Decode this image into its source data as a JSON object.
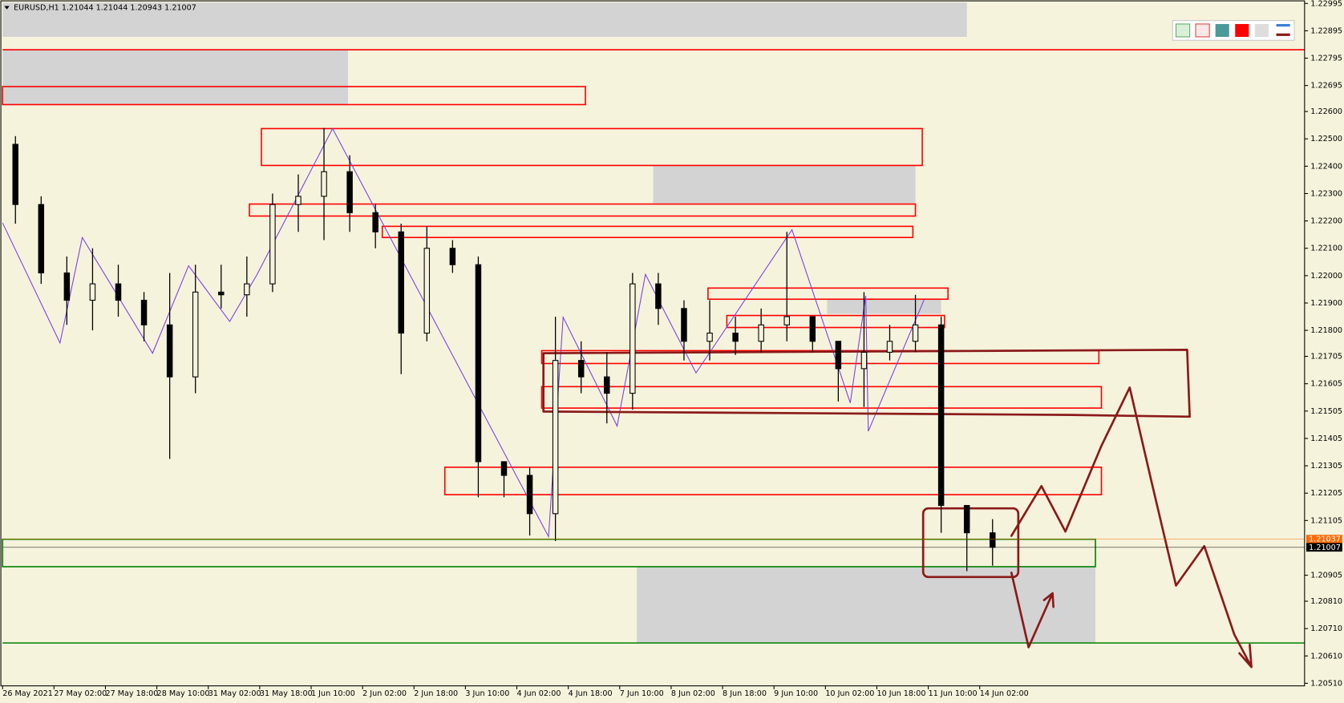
{
  "chart_data": {
    "type": "candlestick",
    "title": "EURUSD,H1  1.21044 1.21044 1.20943 1.21007",
    "ylim": [
      1.2051,
      1.22995
    ],
    "yticks": [
      1.22995,
      1.22895,
      1.22795,
      1.22695,
      {
        "value": 1.226,
        "label": "1.22600"
      },
      {
        "value": 1.225,
        "label": "1.22500"
      },
      {
        "value": 1.224,
        "label": "1.22400"
      },
      {
        "value": 1.223,
        "label": "1.22300"
      },
      {
        "value": 1.222,
        "label": "1.22200"
      },
      {
        "value": 1.221,
        "label": "1.22100"
      },
      {
        "value": 1.22,
        "label": "1.22000"
      },
      {
        "value": 1.219,
        "label": "1.21900"
      },
      {
        "value": 1.218,
        "label": "1.21800"
      },
      1.21705,
      1.21605,
      1.21505,
      1.21405,
      1.21305,
      1.21205,
      1.21105,
      1.20905,
      {
        "value": 1.2081,
        "label": "1.20810"
      },
      {
        "value": 1.2071,
        "label": "1.20710"
      },
      {
        "value": 1.2061,
        "label": "1.20610"
      },
      {
        "value": 1.2051,
        "label": "1.20510"
      }
    ],
    "xticks": [
      "26 May 2021",
      "27 May 02:00",
      "27 May 18:00",
      "28 May 10:00",
      "31 May 02:00",
      "31 May 18:00",
      "1 Jun 10:00",
      "2 Jun 02:00",
      "2 Jun 18:00",
      "3 Jun 10:00",
      "4 Jun 02:00",
      "4 Jun 18:00",
      "7 Jun 10:00",
      "8 Jun 02:00",
      "8 Jun 18:00",
      "9 Jun 10:00",
      "10 Jun 02:00",
      "10 Jun 18:00",
      "11 Jun 10:00",
      "14 Jun 02:00"
    ],
    "color": "#000000",
    "open": [
      1.2248,
      1.2226,
      1.2201,
      1.2191,
      1.2197,
      1.2191,
      1.2182,
      1.2163,
      1.2194,
      1.2193,
      1.2197,
      1.2226,
      1.2229,
      1.2238,
      1.2223,
      1.2216,
      1.2179,
      1.221,
      1.2204,
      1.2132,
      1.2127,
      1.2113,
      1.2169,
      1.2163,
      1.2157,
      1.2197,
      1.2188,
      1.2176,
      1.2179,
      1.2176,
      1.2182,
      1.2185,
      1.2176,
      1.2166,
      1.2172,
      1.2176,
      1.2182,
      1.2116,
      1.2106
    ],
    "high": [
      1.2251,
      1.2229,
      1.2207,
      1.221,
      1.2204,
      1.2194,
      1.2201,
      1.2204,
      1.2204,
      1.2207,
      1.223,
      1.2237,
      1.2254,
      1.2244,
      1.2226,
      1.2219,
      1.2218,
      1.2213,
      1.2207,
      1.2132,
      1.213,
      1.2185,
      1.2176,
      1.2172,
      1.2201,
      1.2201,
      1.2191,
      1.2191,
      1.2185,
      1.2188,
      1.2216,
      1.2185,
      1.2176,
      1.2194,
      1.2182,
      1.2193,
      1.2185,
      1.2116,
      1.2111
    ],
    "low": [
      1.2219,
      1.2197,
      1.2182,
      1.218,
      1.2185,
      1.2176,
      1.2133,
      1.2157,
      1.2188,
      1.2185,
      1.2194,
      1.2216,
      1.2213,
      1.2216,
      1.221,
      1.2164,
      1.2176,
      1.2201,
      1.2119,
      1.2119,
      1.2105,
      1.2103,
      1.2157,
      1.2146,
      1.2151,
      1.2182,
      1.2169,
      1.2169,
      1.2171,
      1.2172,
      1.2176,
      1.2172,
      1.2154,
      1.2152,
      1.2169,
      1.2172,
      1.2106,
      1.2092,
      1.2094
    ],
    "close": [
      1.2226,
      1.2201,
      1.2191,
      1.2197,
      1.2191,
      1.2182,
      1.2163,
      1.2194,
      1.2193,
      1.2197,
      1.2226,
      1.2229,
      1.2238,
      1.2223,
      1.2216,
      1.2179,
      1.221,
      1.2204,
      1.2132,
      1.2127,
      1.2113,
      1.2169,
      1.2163,
      1.2157,
      1.2197,
      1.2188,
      1.2176,
      1.2179,
      1.2176,
      1.2182,
      1.2185,
      1.2176,
      1.2166,
      1.2172,
      1.2176,
      1.2182,
      1.2116,
      1.2106,
      1.21007
    ],
    "price_lines": [
      {
        "value": 1.21037,
        "color": "#ff6a00"
      },
      {
        "value": 1.21007,
        "color": "#000000"
      }
    ]
  }
}
